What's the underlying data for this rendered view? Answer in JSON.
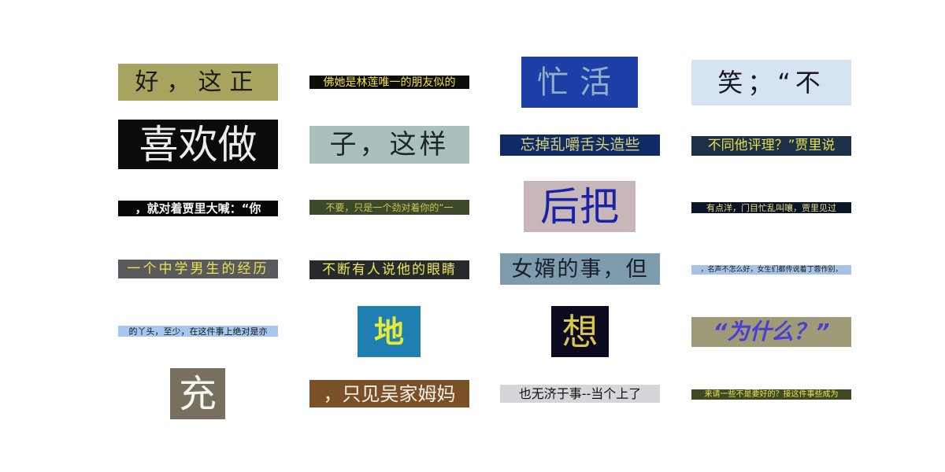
{
  "tiles": [
    {
      "text": "好，这正",
      "bg": "#a7a45f",
      "fg": "#1c1c14"
    },
    {
      "text": "佛她是林莲唯一的朋友似的",
      "bg": "#0c0c08",
      "fg": "#f2e23a"
    },
    {
      "text": "忙活",
      "bg": "#1f3fa8",
      "fg": "#8fb0c8"
    },
    {
      "text": "笑；“不",
      "bg": "#d6e3f3",
      "fg": "#141820"
    },
    {
      "text": "喜欢做",
      "bg": "#0b0b0b",
      "fg": "#ececec"
    },
    {
      "text": "子，这样",
      "bg": "#a9c0bc",
      "fg": "#1d2624"
    },
    {
      "text": "忘掉乱嚼舌头造些",
      "bg": "#0f2a64",
      "fg": "#d9d27a"
    },
    {
      "text": "不同他评理？”贾里说",
      "bg": "#1d3047",
      "fg": "#e8df4a"
    },
    {
      "text": "，就对着贾里大喊：“你",
      "bg": "#050505",
      "fg": "#f4f4f4"
    },
    {
      "text": "不要，只是一个劲对着你的“一",
      "bg": "#3c4a2a",
      "fg": "#c8c75a"
    },
    {
      "text": "后把",
      "bg": "#c8b7b9",
      "fg": "#1c22a8"
    },
    {
      "text": "有点洋，门目忙乱叫嚷，贾里见过",
      "bg": "#0a1428",
      "fg": "#e6e07a"
    },
    {
      "text": "一个中学男生的经历",
      "bg": "#5a5a5e",
      "fg": "#e8e44a"
    },
    {
      "text": "不断有人说他的眼睛",
      "bg": "#262a2c",
      "fg": "#f0e65a"
    },
    {
      "text": "女婿的事，但",
      "bg": "#7f9cae",
      "fg": "#16202a"
    },
    {
      "text": "，名声不怎么好，女生们都传说着丁蓉作别，",
      "bg": "#a6c3e6",
      "fg": "#1a1a1a"
    },
    {
      "text": "的丫头，至少，在这件事上绝对是亦",
      "bg": "#a8c7ee",
      "fg": "#141414"
    },
    {
      "text": "地",
      "bg": "#1e7fb0",
      "fg": "#e9e93a"
    },
    {
      "text": "想",
      "bg": "#0c0a1e",
      "fg": "#d8c84a"
    },
    {
      "text": "“为什么？”",
      "bg": "#9f9a78",
      "fg": "#4b3fd2"
    },
    {
      "text": "充",
      "bg": "#77705e",
      "fg": "#f4f4f0"
    },
    {
      "text": "，只见吴家姆妈",
      "bg": "#7a5028",
      "fg": "#f6f1e6"
    },
    {
      "text": "也无济于事--当个上了",
      "bg": "#d4d6da",
      "fg": "#101010"
    },
    {
      "text": "来请一些不是要好的？接这件事些成为",
      "bg": "#3e4a24",
      "fg": "#ece64a"
    }
  ]
}
